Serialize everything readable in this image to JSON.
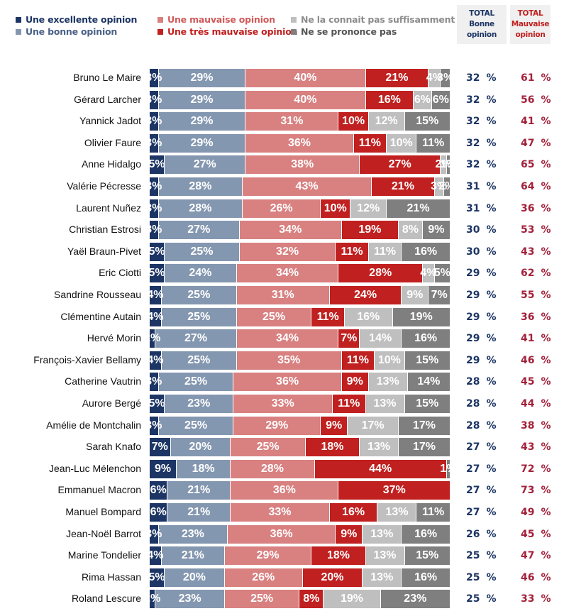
{
  "legend": [
    {
      "label": "Une excellente opinion",
      "color": "#1c3564",
      "text_color": "#1c3564"
    },
    {
      "label": "Une bonne opinion",
      "color": "#8497b0",
      "text_color": "#4a6187"
    },
    {
      "label": "Une mauvaise opinion",
      "color": "#d98080",
      "text_color": "#d05a5a"
    },
    {
      "label": "Une très mauvaise opinion",
      "color": "#c0201f",
      "text_color": "#c0201f"
    },
    {
      "label": "Ne la connait pas suffisamment",
      "color": "#bfbfbf",
      "text_color": "#8c8c8c"
    },
    {
      "label": "Ne se prononce pas",
      "color": "#7f7f7f",
      "text_color": "#555555"
    }
  ],
  "totals_header": {
    "good": [
      "TOTAL",
      "Bonne",
      "opinion"
    ],
    "bad": [
      "TOTAL",
      "Mauvaise",
      "opinion"
    ]
  },
  "pct_symbol": "%",
  "chart_data": {
    "type": "bar",
    "orientation": "horizontal-stacked-100",
    "title": "",
    "xlabel": "",
    "ylabel": "",
    "xlim": [
      0,
      100
    ],
    "legend_position": "top",
    "series_names": [
      "Une excellente opinion",
      "Une bonne opinion",
      "Une mauvaise opinion",
      "Une très mauvaise opinion",
      "Ne la connait pas suffisamment",
      "Ne se prononce pas"
    ],
    "rows": [
      {
        "name": "Bruno Le Maire",
        "values": [
          3,
          29,
          40,
          21,
          4,
          3
        ],
        "total_good": 32,
        "total_bad": 61
      },
      {
        "name": "Gérard Larcher",
        "values": [
          3,
          29,
          40,
          16,
          6,
          6
        ],
        "total_good": 32,
        "total_bad": 56
      },
      {
        "name": "Yannick Jadot",
        "values": [
          3,
          29,
          31,
          10,
          12,
          15
        ],
        "total_good": 32,
        "total_bad": 41
      },
      {
        "name": "Olivier Faure",
        "values": [
          3,
          29,
          36,
          11,
          10,
          11
        ],
        "total_good": 32,
        "total_bad": 47
      },
      {
        "name": "Anne Hidalgo",
        "values": [
          5,
          27,
          38,
          27,
          2,
          1
        ],
        "total_good": 32,
        "total_bad": 65
      },
      {
        "name": "Valérie Pécresse",
        "values": [
          3,
          28,
          43,
          21,
          3,
          2
        ],
        "total_good": 31,
        "total_bad": 64
      },
      {
        "name": "Laurent Nuñez",
        "values": [
          3,
          28,
          26,
          10,
          12,
          21
        ],
        "total_good": 31,
        "total_bad": 36
      },
      {
        "name": "Christian Estrosi",
        "values": [
          3,
          27,
          34,
          19,
          8,
          9
        ],
        "total_good": 30,
        "total_bad": 53
      },
      {
        "name": "Yaël Braun-Pivet",
        "values": [
          5,
          25,
          32,
          11,
          11,
          16
        ],
        "total_good": 30,
        "total_bad": 43
      },
      {
        "name": "Eric Ciotti",
        "values": [
          5,
          24,
          34,
          28,
          4,
          5
        ],
        "total_good": 29,
        "total_bad": 62
      },
      {
        "name": "Sandrine Rousseau",
        "values": [
          4,
          25,
          31,
          24,
          9,
          7
        ],
        "total_good": 29,
        "total_bad": 55
      },
      {
        "name": "Clémentine Autain",
        "values": [
          4,
          25,
          25,
          11,
          16,
          19
        ],
        "total_good": 29,
        "total_bad": 36
      },
      {
        "name": "Hervé Morin",
        "values": [
          2,
          27,
          34,
          7,
          14,
          16
        ],
        "total_good": 29,
        "total_bad": 41
      },
      {
        "name": "François-Xavier Bellamy",
        "values": [
          4,
          25,
          35,
          11,
          10,
          15
        ],
        "total_good": 29,
        "total_bad": 46
      },
      {
        "name": "Catherine Vautrin",
        "values": [
          3,
          25,
          36,
          9,
          13,
          14
        ],
        "total_good": 28,
        "total_bad": 45
      },
      {
        "name": "Aurore Bergé",
        "values": [
          5,
          23,
          33,
          11,
          13,
          15
        ],
        "total_good": 28,
        "total_bad": 44
      },
      {
        "name": "Amélie de Montchalin",
        "values": [
          3,
          25,
          29,
          9,
          17,
          17
        ],
        "total_good": 28,
        "total_bad": 38
      },
      {
        "name": "Sarah Knafo",
        "values": [
          7,
          20,
          25,
          18,
          13,
          17
        ],
        "total_good": 27,
        "total_bad": 43
      },
      {
        "name": "Jean-Luc Mélenchon",
        "values": [
          9,
          18,
          28,
          44,
          0,
          1
        ],
        "total_good": 27,
        "total_bad": 72
      },
      {
        "name": "Emmanuel Macron",
        "values": [
          6,
          21,
          36,
          37,
          0,
          0
        ],
        "total_good": 27,
        "total_bad": 73
      },
      {
        "name": "Manuel Bompard",
        "values": [
          6,
          21,
          33,
          16,
          13,
          11
        ],
        "total_good": 27,
        "total_bad": 49
      },
      {
        "name": "Jean-Noël Barrot",
        "values": [
          3,
          23,
          36,
          9,
          13,
          16
        ],
        "total_good": 26,
        "total_bad": 45
      },
      {
        "name": "Marine Tondelier",
        "values": [
          4,
          21,
          29,
          18,
          13,
          15
        ],
        "total_good": 25,
        "total_bad": 47
      },
      {
        "name": "Rima Hassan",
        "values": [
          5,
          20,
          26,
          20,
          13,
          16
        ],
        "total_good": 25,
        "total_bad": 46
      },
      {
        "name": "Roland Lescure",
        "values": [
          2,
          23,
          25,
          8,
          19,
          23
        ],
        "total_good": 25,
        "total_bad": 33
      }
    ]
  }
}
